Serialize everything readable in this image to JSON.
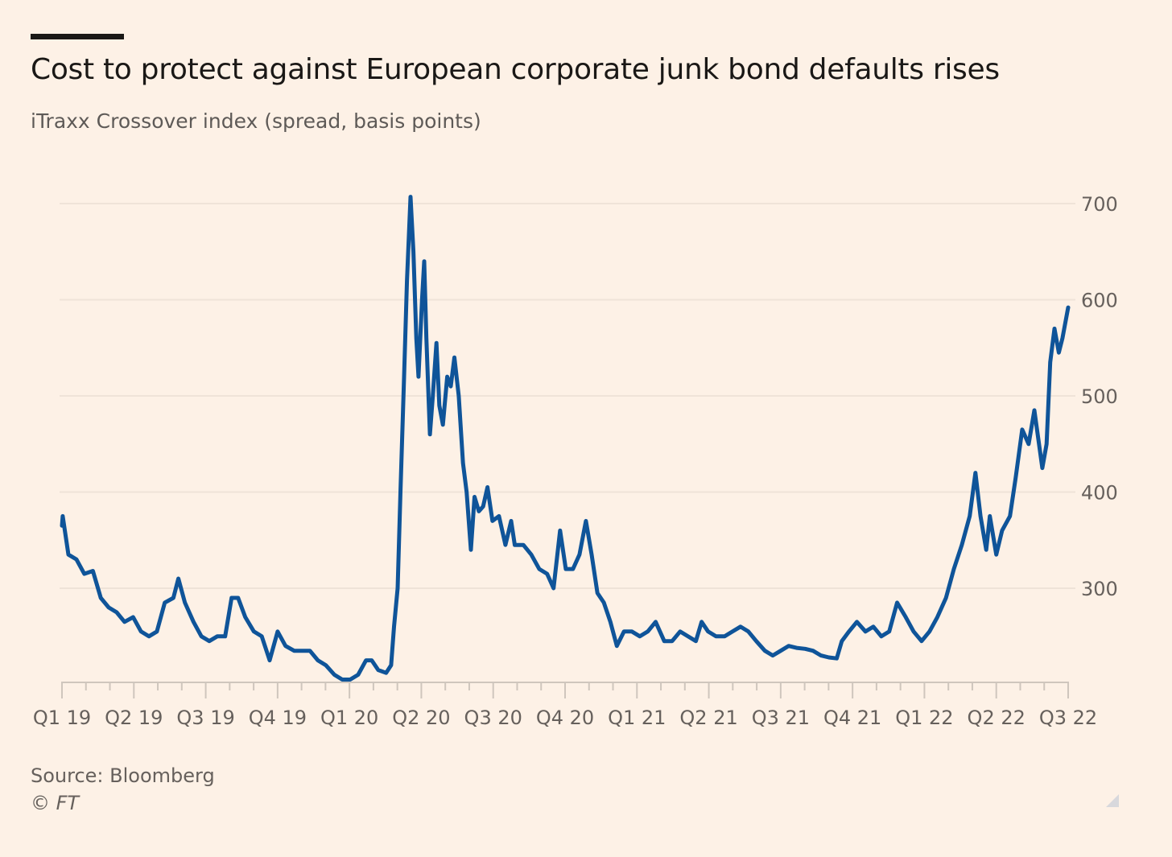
{
  "header": {
    "title": "Cost to protect against European corporate junk bond defaults rises",
    "subtitle": "iTraxx Crossover index (spread, basis points)"
  },
  "footer": {
    "source": "Source: Bloomberg",
    "copyright": "© FT"
  },
  "colors": {
    "line": "#0f5499",
    "background": "#fdf1e6",
    "grid": "#efe3d8"
  },
  "chart_data": {
    "type": "line",
    "title": "Cost to protect against European corporate junk bond defaults rises",
    "subtitle": "iTraxx Crossover index (spread, basis points)",
    "xlabel": "",
    "ylabel": "spread, basis points",
    "x_unit": "quarters since start of Q1 2019",
    "xlim": [
      0,
      14
    ],
    "ylim": [
      200,
      700
    ],
    "yticks": [
      300,
      400,
      500,
      600,
      700
    ],
    "ytick_labels": [
      "300",
      "400",
      "500",
      "600",
      "700"
    ],
    "xtick_labels": [
      "Q1 19",
      "Q2 19",
      "Q3 19",
      "Q4 19",
      "Q1 20",
      "Q2 20",
      "Q3 20",
      "Q4 20",
      "Q1 21",
      "Q2 21",
      "Q3 21",
      "Q4 21",
      "Q1 22",
      "Q2 22",
      "Q3 22"
    ],
    "y_axis_side": "right",
    "grid": true,
    "legend": "none",
    "series": [
      {
        "name": "iTraxx Crossover",
        "points": [
          [
            0.0,
            365
          ],
          [
            0.01,
            375
          ],
          [
            0.09,
            335
          ],
          [
            0.2,
            330
          ],
          [
            0.31,
            315
          ],
          [
            0.43,
            318
          ],
          [
            0.54,
            290
          ],
          [
            0.65,
            280
          ],
          [
            0.76,
            275
          ],
          [
            0.87,
            265
          ],
          [
            0.99,
            270
          ],
          [
            1.1,
            255
          ],
          [
            1.21,
            250
          ],
          [
            1.32,
            255
          ],
          [
            1.43,
            285
          ],
          [
            1.55,
            290
          ],
          [
            1.62,
            310
          ],
          [
            1.71,
            285
          ],
          [
            1.83,
            265
          ],
          [
            1.94,
            250
          ],
          [
            2.05,
            245
          ],
          [
            2.16,
            250
          ],
          [
            2.27,
            250
          ],
          [
            2.36,
            290
          ],
          [
            2.45,
            290
          ],
          [
            2.55,
            270
          ],
          [
            2.67,
            255
          ],
          [
            2.78,
            250
          ],
          [
            2.89,
            225
          ],
          [
            3.0,
            255
          ],
          [
            3.11,
            240
          ],
          [
            3.23,
            235
          ],
          [
            3.34,
            235
          ],
          [
            3.45,
            235
          ],
          [
            3.56,
            225
          ],
          [
            3.67,
            220
          ],
          [
            3.79,
            210
          ],
          [
            3.9,
            205
          ],
          [
            4.01,
            205
          ],
          [
            4.12,
            210
          ],
          [
            4.23,
            225
          ],
          [
            4.31,
            225
          ],
          [
            4.4,
            215
          ],
          [
            4.51,
            212
          ],
          [
            4.58,
            220
          ],
          [
            4.62,
            260
          ],
          [
            4.67,
            300
          ],
          [
            4.71,
            400
          ],
          [
            4.76,
            520
          ],
          [
            4.8,
            620
          ],
          [
            4.85,
            707
          ],
          [
            4.89,
            650
          ],
          [
            4.93,
            560
          ],
          [
            4.96,
            520
          ],
          [
            5.01,
            600
          ],
          [
            5.04,
            640
          ],
          [
            5.07,
            560
          ],
          [
            5.12,
            460
          ],
          [
            5.16,
            500
          ],
          [
            5.21,
            555
          ],
          [
            5.25,
            490
          ],
          [
            5.3,
            470
          ],
          [
            5.36,
            520
          ],
          [
            5.41,
            510
          ],
          [
            5.46,
            540
          ],
          [
            5.52,
            500
          ],
          [
            5.58,
            430
          ],
          [
            5.63,
            400
          ],
          [
            5.69,
            340
          ],
          [
            5.74,
            395
          ],
          [
            5.8,
            380
          ],
          [
            5.86,
            385
          ],
          [
            5.92,
            405
          ],
          [
            5.99,
            370
          ],
          [
            6.08,
            375
          ],
          [
            6.17,
            345
          ],
          [
            6.25,
            370
          ],
          [
            6.3,
            345
          ],
          [
            6.42,
            345
          ],
          [
            6.53,
            335
          ],
          [
            6.64,
            320
          ],
          [
            6.75,
            315
          ],
          [
            6.84,
            300
          ],
          [
            6.93,
            360
          ],
          [
            7.01,
            320
          ],
          [
            7.11,
            320
          ],
          [
            7.2,
            335
          ],
          [
            7.29,
            370
          ],
          [
            7.37,
            335
          ],
          [
            7.45,
            295
          ],
          [
            7.54,
            285
          ],
          [
            7.63,
            265
          ],
          [
            7.72,
            240
          ],
          [
            7.82,
            255
          ],
          [
            7.93,
            255
          ],
          [
            8.04,
            250
          ],
          [
            8.15,
            255
          ],
          [
            8.26,
            265
          ],
          [
            8.38,
            245
          ],
          [
            8.49,
            245
          ],
          [
            8.6,
            255
          ],
          [
            8.71,
            250
          ],
          [
            8.82,
            245
          ],
          [
            8.9,
            265
          ],
          [
            8.99,
            255
          ],
          [
            9.1,
            250
          ],
          [
            9.22,
            250
          ],
          [
            9.33,
            255
          ],
          [
            9.44,
            260
          ],
          [
            9.55,
            255
          ],
          [
            9.66,
            245
          ],
          [
            9.78,
            235
          ],
          [
            9.89,
            230
          ],
          [
            10.0,
            235
          ],
          [
            10.11,
            240
          ],
          [
            10.22,
            238
          ],
          [
            10.34,
            237
          ],
          [
            10.45,
            235
          ],
          [
            10.56,
            230
          ],
          [
            10.67,
            228
          ],
          [
            10.78,
            227
          ],
          [
            10.85,
            245
          ],
          [
            10.95,
            255
          ],
          [
            11.06,
            265
          ],
          [
            11.18,
            255
          ],
          [
            11.29,
            260
          ],
          [
            11.4,
            250
          ],
          [
            11.51,
            255
          ],
          [
            11.62,
            285
          ],
          [
            11.74,
            270
          ],
          [
            11.85,
            255
          ],
          [
            11.96,
            245
          ],
          [
            12.07,
            255
          ],
          [
            12.18,
            270
          ],
          [
            12.3,
            290
          ],
          [
            12.41,
            320
          ],
          [
            12.52,
            345
          ],
          [
            12.63,
            375
          ],
          [
            12.71,
            420
          ],
          [
            12.78,
            375
          ],
          [
            12.86,
            340
          ],
          [
            12.91,
            375
          ],
          [
            13.0,
            335
          ],
          [
            13.08,
            360
          ],
          [
            13.19,
            375
          ],
          [
            13.27,
            415
          ],
          [
            13.36,
            465
          ],
          [
            13.45,
            450
          ],
          [
            13.53,
            485
          ],
          [
            13.64,
            425
          ],
          [
            13.7,
            450
          ],
          [
            13.75,
            535
          ],
          [
            13.81,
            570
          ],
          [
            13.87,
            545
          ],
          [
            13.92,
            560
          ],
          [
            14.0,
            592
          ]
        ]
      }
    ]
  }
}
